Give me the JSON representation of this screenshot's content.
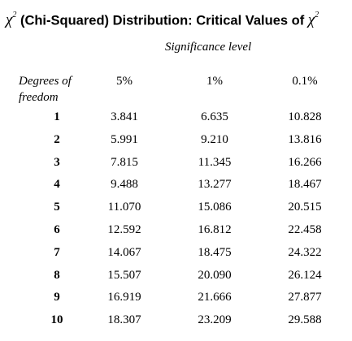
{
  "title": {
    "symbol": "χ",
    "superscript": "2",
    "text": " (Chi-Squared) Distribution: Critical Values of ",
    "symbol_end": "χ",
    "superscript_end": "2"
  },
  "significance_label": "Significance level",
  "dof_label_line1": "Degrees of",
  "dof_label_line2": "freedom",
  "columns": [
    "5%",
    "1%",
    "0.1%"
  ],
  "rows": [
    {
      "df": "1",
      "v": [
        "3.841",
        "6.635",
        "10.828"
      ]
    },
    {
      "df": "2",
      "v": [
        "5.991",
        "9.210",
        "13.816"
      ]
    },
    {
      "df": "3",
      "v": [
        "7.815",
        "11.345",
        "16.266"
      ]
    },
    {
      "df": "4",
      "v": [
        "9.488",
        "13.277",
        "18.467"
      ]
    },
    {
      "df": "5",
      "v": [
        "11.070",
        "15.086",
        "20.515"
      ]
    },
    {
      "df": "6",
      "v": [
        "12.592",
        "16.812",
        "22.458"
      ]
    },
    {
      "df": "7",
      "v": [
        "14.067",
        "18.475",
        "24.322"
      ]
    },
    {
      "df": "8",
      "v": [
        "15.507",
        "20.090",
        "26.124"
      ]
    },
    {
      "df": "9",
      "v": [
        "16.919",
        "21.666",
        "27.877"
      ]
    },
    {
      "df": "10",
      "v": [
        "18.307",
        "23.209",
        "29.588"
      ]
    }
  ]
}
